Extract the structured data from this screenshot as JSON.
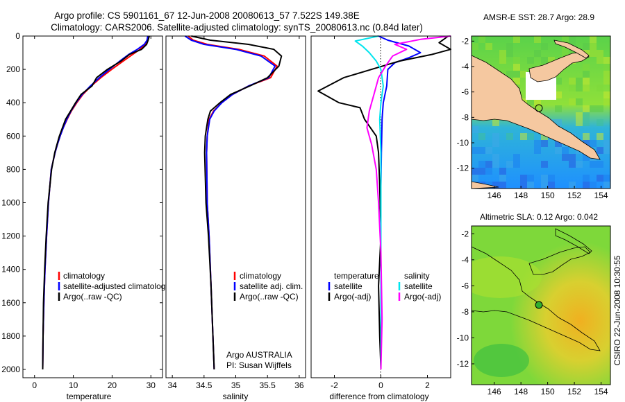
{
  "figure": {
    "title_line1": "Argo profile: CS 5901161_67 12-Jun-2008 20080613_57 7.522S 149.38E",
    "title_line2": "Climatology: CARS2006. Satellite-adjusted climatology: synTS_20080613.nc (0.84d later)",
    "side_label": "CSIRO 22-Jun-2008 10:30:55",
    "credit_line1": "Argo AUSTRALIA",
    "credit_line2": "PI: Susan Wijffels"
  },
  "colors": {
    "climatology": "#ff0000",
    "satellite": "#0000ff",
    "argo": "#000000",
    "salinity_satellite": "#00e5ee",
    "salinity_argo": "#ff00ff",
    "land": "#f5c8a0"
  },
  "chart_data": [
    {
      "id": "temperature",
      "type": "line",
      "xlabel": "temperature",
      "ylabel": "",
      "xlim": [
        -3,
        33
      ],
      "ylim": [
        2050,
        0
      ],
      "xticks": [
        0,
        10,
        20,
        30
      ],
      "yticks": [
        0,
        200,
        400,
        600,
        800,
        1000,
        1200,
        1400,
        1600,
        1800,
        2000
      ],
      "legend": [
        "climatology",
        "satellite-adjusted climatology",
        "Argo(..raw -QC)"
      ],
      "legend_position": "lower-left",
      "series": [
        {
          "name": "climatology",
          "color": "#ff0000",
          "x": [
            29.3,
            29.1,
            28.6,
            27.2,
            25.3,
            22.9,
            19.9,
            17.1,
            14.6,
            12.5,
            10.9,
            9.5,
            8.4,
            7.4,
            6.6,
            5.9,
            5.3,
            4.3,
            3.6,
            3.1,
            2.7,
            2.4,
            2.2,
            2.1
          ],
          "y": [
            0,
            25,
            50,
            80,
            110,
            150,
            200,
            250,
            300,
            350,
            400,
            450,
            500,
            550,
            600,
            650,
            700,
            800,
            1000,
            1200,
            1400,
            1600,
            1800,
            2000
          ]
        },
        {
          "name": "satellite-adjusted climatology",
          "color": "#0000ff",
          "x": [
            29.2,
            29.0,
            28.3,
            26.5,
            24.3,
            22.0,
            19.3,
            16.7,
            14.4,
            12.3,
            10.7,
            9.4,
            8.3,
            7.4,
            6.6,
            5.9,
            5.3,
            4.3,
            3.6,
            3.1,
            2.7,
            2.4,
            2.2,
            2.1
          ],
          "y": [
            0,
            25,
            50,
            80,
            110,
            150,
            200,
            250,
            300,
            350,
            400,
            450,
            500,
            550,
            600,
            650,
            700,
            800,
            1000,
            1200,
            1400,
            1600,
            1800,
            2000
          ]
        },
        {
          "name": "Argo(..raw -QC)",
          "color": "#000000",
          "x": [
            29.6,
            29.3,
            28.9,
            27.6,
            24.5,
            22.3,
            18.8,
            16.0,
            14.8,
            12.0,
            10.6,
            9.3,
            8.0,
            7.2,
            6.4,
            5.8,
            5.2,
            4.4,
            3.5,
            3.0,
            2.6,
            2.3,
            2.2,
            2.1
          ],
          "y": [
            0,
            25,
            50,
            80,
            110,
            150,
            200,
            250,
            300,
            350,
            400,
            450,
            500,
            550,
            600,
            650,
            700,
            800,
            1000,
            1200,
            1400,
            1600,
            1800,
            2000
          ]
        }
      ]
    },
    {
      "id": "salinity",
      "type": "line",
      "xlabel": "salinity",
      "ylabel": "",
      "xlim": [
        33.9,
        36.1
      ],
      "ylim": [
        2050,
        0
      ],
      "xticks": [
        34,
        34.5,
        35,
        35.5,
        36
      ],
      "xtick_labels": [
        "34",
        "34.5",
        "35",
        "35.5",
        "36"
      ],
      "legend": [
        "climatology",
        "satellite adj. clim.",
        "Argo(..raw -QC)"
      ],
      "legend_position": "lower-right",
      "series": [
        {
          "name": "climatology",
          "color": "#ff0000",
          "x": [
            34.25,
            34.33,
            34.55,
            35.05,
            35.45,
            35.65,
            35.55,
            35.2,
            34.95,
            34.78,
            34.65,
            34.58,
            34.55,
            34.54,
            34.55,
            34.58,
            34.61,
            34.64,
            34.66
          ],
          "y": [
            0,
            25,
            50,
            80,
            120,
            180,
            250,
            300,
            350,
            400,
            450,
            500,
            600,
            700,
            1000,
            1200,
            1500,
            1800,
            2000
          ]
        },
        {
          "name": "satellite adj. clim.",
          "color": "#0000ff",
          "x": [
            34.2,
            34.3,
            34.5,
            35.0,
            35.4,
            35.62,
            35.52,
            35.2,
            34.95,
            34.78,
            34.66,
            34.59,
            34.55,
            34.54,
            34.55,
            34.58,
            34.61,
            34.64,
            34.66
          ],
          "y": [
            0,
            25,
            50,
            80,
            120,
            180,
            250,
            300,
            350,
            400,
            450,
            500,
            600,
            700,
            1000,
            1200,
            1500,
            1800,
            2000
          ]
        },
        {
          "name": "Argo(..raw -QC)",
          "color": "#000000",
          "x": [
            34.3,
            34.6,
            35.2,
            35.6,
            35.72,
            35.68,
            35.5,
            35.22,
            34.92,
            34.75,
            34.6,
            34.56,
            34.52,
            34.51,
            34.53,
            34.57,
            34.61,
            34.64,
            34.66
          ],
          "y": [
            0,
            25,
            50,
            80,
            120,
            180,
            250,
            300,
            350,
            400,
            450,
            500,
            600,
            700,
            1000,
            1200,
            1500,
            1800,
            2000
          ]
        }
      ]
    },
    {
      "id": "difference",
      "type": "line",
      "xlabel": "difference from climatology",
      "ylabel": "",
      "xlim": [
        -3,
        3
      ],
      "ylim": [
        2050,
        0
      ],
      "xticks": [
        -2,
        0,
        2
      ],
      "legend_temperature_title": "temperature",
      "legend_salinity_title": "salinity",
      "legend_temperature": [
        "satellite",
        "Argo(-adj)"
      ],
      "legend_salinity": [
        "satellite",
        "Argo(-adj)"
      ],
      "legend_position": "lower-center",
      "series": [
        {
          "name": "temperature satellite",
          "color": "#0000ff",
          "x": [
            -0.1,
            0.3,
            1.2,
            1.7,
            1.2,
            0.6,
            0.3,
            0.25,
            0.1,
            0.05,
            0.02,
            0.0,
            0.0,
            0.0,
            0.0,
            0.0
          ],
          "y": [
            0,
            25,
            60,
            100,
            130,
            160,
            200,
            300,
            400,
            500,
            700,
            900,
            1200,
            1500,
            1800,
            2000
          ]
        },
        {
          "name": "temperature Argo(-adj)",
          "color": "#000000",
          "x": [
            2.9,
            2.5,
            3.0,
            2.2,
            0.8,
            -0.4,
            -1.6,
            -2.7,
            -1.8,
            -0.9,
            -0.7,
            -0.2,
            -0.1,
            -0.05,
            0.0,
            -0.1,
            -0.05,
            0.0
          ],
          "y": [
            0,
            40,
            80,
            110,
            150,
            200,
            250,
            330,
            400,
            430,
            500,
            600,
            700,
            900,
            1200,
            1500,
            1800,
            2000
          ]
        },
        {
          "name": "salinity satellite",
          "color": "#00e5ee",
          "x": [
            -0.1,
            -1.1,
            -0.8,
            -0.5,
            -0.2,
            0.0,
            0.1,
            0.0,
            -0.05,
            0.0,
            0.0,
            0.0,
            0.0,
            0.0
          ],
          "y": [
            0,
            30,
            60,
            100,
            150,
            200,
            300,
            400,
            500,
            700,
            900,
            1200,
            1500,
            2000
          ]
        },
        {
          "name": "salinity Argo(-adj)",
          "color": "#ff00ff",
          "x": [
            3.0,
            1.7,
            0.6,
            1.1,
            0.5,
            0.2,
            -0.1,
            -0.3,
            -0.5,
            -0.6,
            -0.4,
            -0.2,
            -0.1,
            0.0,
            0.05,
            0.0
          ],
          "y": [
            0,
            20,
            50,
            80,
            120,
            180,
            250,
            350,
            450,
            550,
            650,
            800,
            1000,
            1300,
            1700,
            2000
          ]
        }
      ]
    },
    {
      "id": "sst-map",
      "type": "heatmap",
      "title": "AMSR-E SST: 28.7  Argo: 28.9",
      "xlim": [
        144.3,
        154.7
      ],
      "ylim": [
        -13.6,
        -1.6
      ],
      "xticks": [
        146,
        148,
        150,
        152,
        154
      ],
      "yticks": [
        -2,
        -4,
        -6,
        -8,
        -10,
        -12
      ],
      "float_position": {
        "lon": 149.38,
        "lat": -7.522
      }
    },
    {
      "id": "sla-map",
      "type": "heatmap",
      "title": "Altimetric SLA: 0.12  Argo: 0.042",
      "xlim": [
        144.3,
        154.7
      ],
      "ylim": [
        -13.6,
        -1.4
      ],
      "xticks": [
        146,
        148,
        150,
        152,
        154
      ],
      "yticks": [
        -2,
        -4,
        -6,
        -8,
        -10,
        -12
      ],
      "float_position": {
        "lon": 149.38,
        "lat": -7.522
      }
    }
  ]
}
